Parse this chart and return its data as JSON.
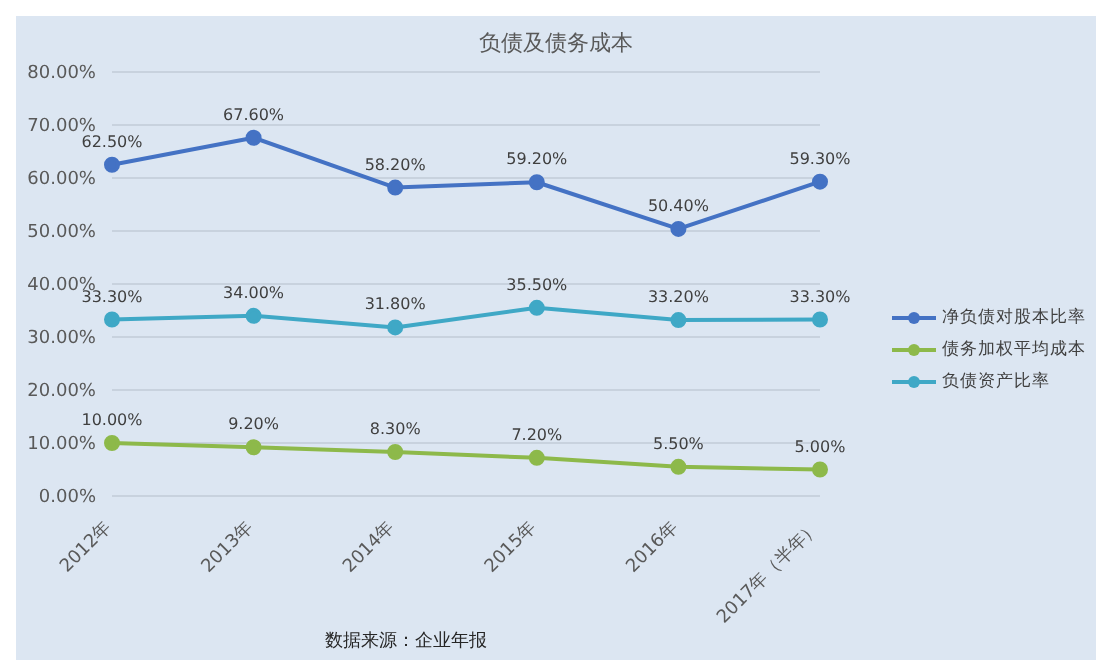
{
  "chart_data": {
    "type": "line",
    "title": "负债及债务成本",
    "categories": [
      "2012年",
      "2013年",
      "2014年",
      "2015年",
      "2016年",
      "2017年（半年）"
    ],
    "series": [
      {
        "name": "净负债对股本比率",
        "color": "#4472c4",
        "values": [
          62.5,
          67.6,
          58.2,
          59.2,
          50.4,
          59.3
        ],
        "value_labels": [
          "62.50%",
          "67.60%",
          "58.20%",
          "59.20%",
          "50.40%",
          "59.30%"
        ]
      },
      {
        "name": "债务加权平均成本",
        "color": "#8db94a",
        "values": [
          10.0,
          9.2,
          8.3,
          7.2,
          5.5,
          5.0
        ],
        "value_labels": [
          "10.00%",
          "9.20%",
          "8.30%",
          "7.20%",
          "5.50%",
          "5.00%"
        ]
      },
      {
        "name": "负债资产比率",
        "color": "#3fa8c6",
        "values": [
          33.3,
          34.0,
          31.8,
          35.5,
          33.2,
          33.3
        ],
        "value_labels": [
          "33.30%",
          "34.00%",
          "31.80%",
          "35.50%",
          "33.20%",
          "33.30%"
        ]
      }
    ],
    "ylim": [
      0,
      80
    ],
    "yticks": [
      {
        "value": 0,
        "label": "0.00%"
      },
      {
        "value": 10,
        "label": "10.00%"
      },
      {
        "value": 20,
        "label": "20.00%"
      },
      {
        "value": 30,
        "label": "30.00%"
      },
      {
        "value": 40,
        "label": "40.00%"
      },
      {
        "value": 50,
        "label": "50.00%"
      },
      {
        "value": 60,
        "label": "60.00%"
      },
      {
        "value": 70,
        "label": "70.00%"
      },
      {
        "value": 80,
        "label": "80.00%"
      }
    ],
    "grid": "y",
    "legend": "right",
    "marker": "circle",
    "line_style": "solid",
    "annotations": [
      "数据来源：企业年报"
    ]
  }
}
